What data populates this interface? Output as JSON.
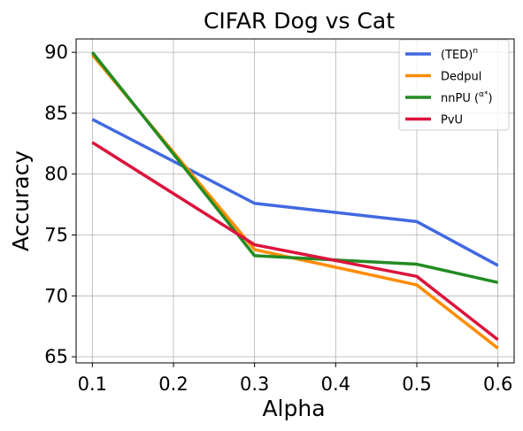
{
  "chart_data": {
    "type": "line",
    "title": "CIFAR Dog vs Cat",
    "xlabel": "Alpha",
    "ylabel": "Accuracy",
    "x": [
      0.1,
      0.3,
      0.5,
      0.6
    ],
    "xticks": [
      "0.1",
      "0.2",
      "0.3",
      "0.4",
      "0.5",
      "0.6"
    ],
    "yticks": [
      "65",
      "70",
      "75",
      "80",
      "85",
      "90"
    ],
    "xlim": [
      0.08,
      0.62
    ],
    "ylim": [
      64.5,
      91.1
    ],
    "grid": true,
    "legend_position": "top-right",
    "series": [
      {
        "name": "(TED)",
        "name_sup": "n",
        "color": "#4169e1",
        "values": [
          84.5,
          77.6,
          76.1,
          72.5
        ]
      },
      {
        "name": "Dedpul",
        "name_sup": "",
        "color": "#ff8c00",
        "values": [
          89.8,
          73.8,
          70.9,
          65.7
        ]
      },
      {
        "name": "nnPU (",
        "name_sup": "α*",
        "name_suffix": ")",
        "color": "#228b22",
        "values": [
          90.0,
          73.3,
          72.6,
          71.1
        ]
      },
      {
        "name": "PvU",
        "name_sup": "",
        "color": "#dc143c",
        "values": [
          82.6,
          74.2,
          71.6,
          66.4
        ]
      }
    ]
  }
}
